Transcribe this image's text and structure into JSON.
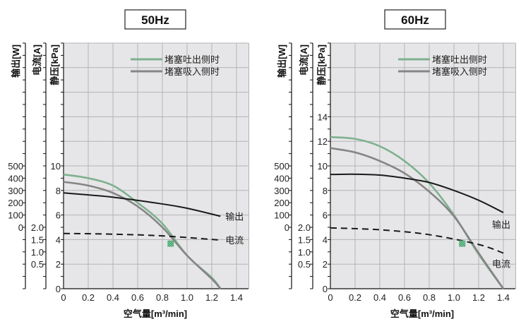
{
  "chart_data": [
    {
      "type": "line",
      "title": "50Hz",
      "xlabel": "空气量[m³/min]",
      "ylabels": {
        "power": "输出[W]",
        "current": "电流[A]",
        "pressure": "静压[kPa]"
      },
      "xlim": [
        0,
        1.5
      ],
      "xticks": [
        0,
        0.2,
        0.4,
        0.6,
        0.8,
        1.0,
        1.2,
        1.4
      ],
      "xtick_labels": [
        "0",
        "0.2",
        "0.4",
        "0.6",
        "0.8",
        "1.0",
        "1.2",
        "1.4"
      ],
      "pressure_lim": [
        0,
        20
      ],
      "pressure_tick_labels": [
        "0",
        "2",
        "4",
        "6",
        "8",
        "10"
      ],
      "power_tick_labels": [
        "0",
        "100",
        "200",
        "300",
        "400",
        "500"
      ],
      "current_tick_labels": [
        "0.5",
        "1.0",
        "1.5",
        "2.0"
      ],
      "grid": true,
      "legend": {
        "position": "top-right",
        "entries": [
          "堵塞吐出侧时",
          "堵塞吸入侧时"
        ]
      },
      "series": [
        {
          "name": "堵塞吐出侧时",
          "axis": "pressure",
          "color": "#7fb18f",
          "x": [
            0,
            0.2,
            0.4,
            0.6,
            0.8,
            1.0,
            1.2,
            1.27
          ],
          "y": [
            9.3,
            9.0,
            8.4,
            7.0,
            5.3,
            2.7,
            0.9,
            0
          ]
        },
        {
          "name": "堵塞吸入侧时",
          "axis": "pressure",
          "color": "#858585",
          "x": [
            0,
            0.2,
            0.4,
            0.6,
            0.8,
            1.0,
            1.2,
            1.27
          ],
          "y": [
            8.7,
            8.4,
            7.8,
            6.7,
            5.0,
            2.7,
            0.8,
            0
          ]
        },
        {
          "name": "输出",
          "axis": "power",
          "color": "#1a1a1a",
          "dashed": false,
          "x": [
            0,
            0.4,
            0.8,
            1.0,
            1.27
          ],
          "y": [
            280,
            245,
            190,
            155,
            90
          ]
        },
        {
          "name": "电流",
          "axis": "current",
          "color": "#1a1a1a",
          "dashed": true,
          "x": [
            0,
            0.4,
            0.8,
            1.27
          ],
          "y": [
            1.75,
            1.72,
            1.65,
            1.48
          ]
        }
      ],
      "marker": {
        "x": 0.87,
        "pressure": 3.7,
        "color": "#2e9a5e"
      }
    },
    {
      "type": "line",
      "title": "60Hz",
      "xlabel": "空气量[m³/min]",
      "ylabels": {
        "power": "输出[W]",
        "current": "电流[A]",
        "pressure": "静压[kPa]"
      },
      "xlim": [
        0,
        1.5
      ],
      "xticks": [
        0,
        0.2,
        0.4,
        0.6,
        0.8,
        1.0,
        1.2,
        1.4
      ],
      "xtick_labels": [
        "0",
        "0.2",
        "0.4",
        "0.6",
        "0.8",
        "1.0",
        "1.2",
        "1.4"
      ],
      "pressure_lim": [
        0,
        20
      ],
      "pressure_tick_labels": [
        "0",
        "2",
        "4",
        "6",
        "8",
        "10",
        "12",
        "14"
      ],
      "power_tick_labels": [
        "0",
        "100",
        "200",
        "300",
        "400",
        "500"
      ],
      "current_tick_labels": [
        "0.5",
        "1.0",
        "1.5",
        "2.0"
      ],
      "grid": true,
      "legend": {
        "position": "top-right",
        "entries": [
          "堵塞吐出侧时",
          "堵塞吸入侧时"
        ]
      },
      "series": [
        {
          "name": "堵塞吐出侧时",
          "axis": "pressure",
          "color": "#7fb18f",
          "x": [
            0,
            0.2,
            0.4,
            0.6,
            0.8,
            1.0,
            1.2,
            1.4
          ],
          "y": [
            12.35,
            12.2,
            11.6,
            10.4,
            8.6,
            6.0,
            2.8,
            0
          ]
        },
        {
          "name": "堵塞吸入侧时",
          "axis": "pressure",
          "color": "#858585",
          "x": [
            0,
            0.2,
            0.4,
            0.6,
            0.8,
            1.0,
            1.2,
            1.4
          ],
          "y": [
            11.45,
            11.1,
            10.4,
            9.4,
            7.9,
            5.9,
            2.9,
            0
          ]
        },
        {
          "name": "输出",
          "axis": "power",
          "color": "#1a1a1a",
          "dashed": false,
          "x": [
            0,
            0.2,
            0.4,
            0.6,
            0.8,
            1.0,
            1.2,
            1.4
          ],
          "y": [
            430,
            432,
            425,
            400,
            365,
            300,
            220,
            120
          ]
        },
        {
          "name": "电流",
          "axis": "current",
          "color": "#1a1a1a",
          "dashed": true,
          "x": [
            0,
            0.4,
            0.8,
            1.2,
            1.4
          ],
          "y": [
            1.975,
            1.9,
            1.7,
            1.3,
            0.95
          ]
        }
      ],
      "marker": {
        "x": 1.07,
        "pressure": 3.7,
        "color": "#2e9a5e"
      }
    }
  ]
}
